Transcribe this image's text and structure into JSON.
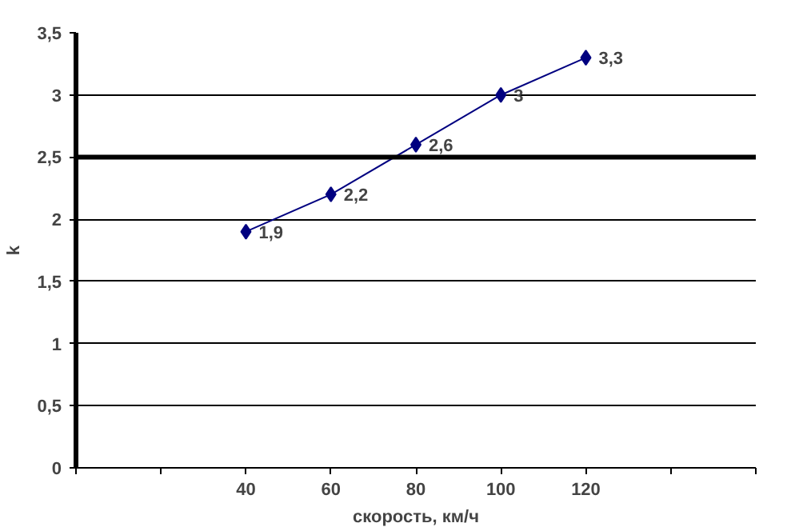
{
  "chart_data": {
    "type": "line",
    "xlabel": "скорость, км/ч",
    "ylabel": "k",
    "x": [
      40,
      60,
      80,
      100,
      120
    ],
    "series": [
      {
        "color": "#000080",
        "values": [
          1.9,
          2.2,
          2.6,
          3,
          3.3
        ]
      }
    ],
    "value_labels": [
      "1,9",
      "2,2",
      "2,6",
      "3",
      "3,3"
    ],
    "xlim": [
      0,
      160
    ],
    "xticks": [
      {
        "value": 0,
        "label": null
      },
      {
        "value": 20,
        "label": null
      },
      40,
      60,
      80,
      100,
      120,
      {
        "value": 140,
        "label": null
      },
      {
        "value": 160,
        "label": null
      }
    ],
    "ylim": [
      0,
      3.5
    ],
    "yticks": [
      0,
      {
        "value": 0.5,
        "label": "0,5"
      },
      1,
      {
        "value": 1.5,
        "label": "1,5"
      },
      2,
      {
        "value": 2.5,
        "label": "2,5"
      },
      3,
      {
        "value": 3.5,
        "label": "3,5"
      }
    ],
    "ref_lines": [
      {
        "axis": "y",
        "value": 2.5,
        "color": "#000000"
      }
    ],
    "grid": "y",
    "marker": "diamond",
    "line_style": "solid"
  }
}
